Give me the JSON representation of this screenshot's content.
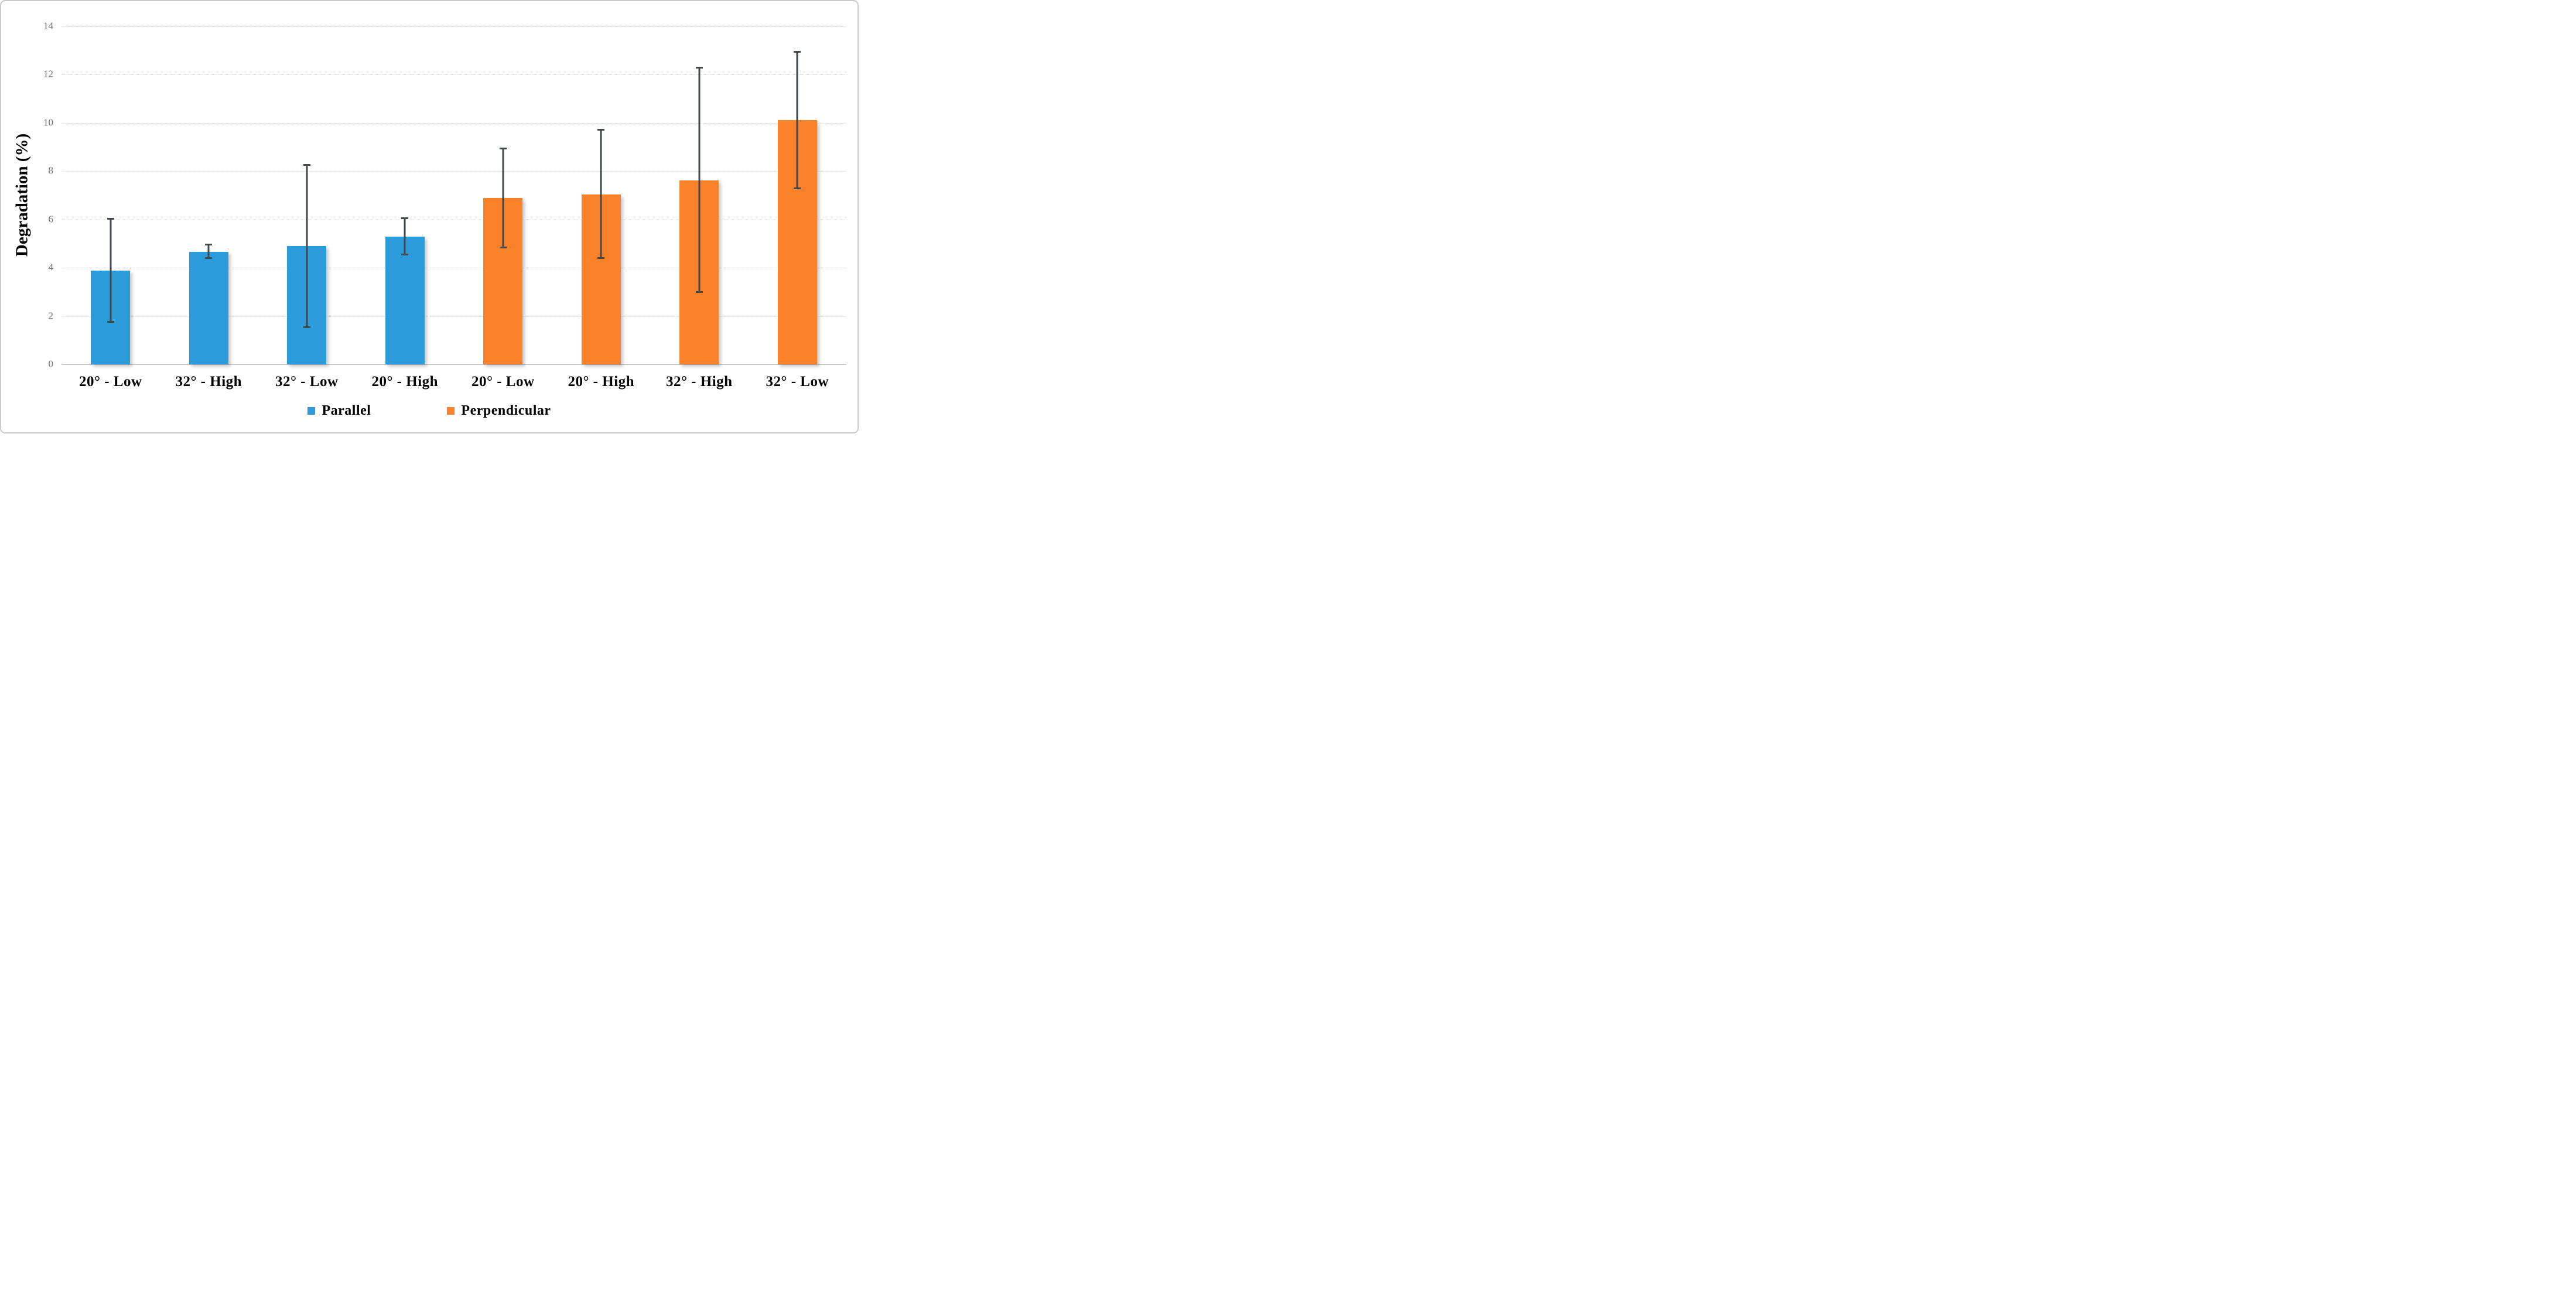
{
  "figure": {
    "background_color": "#ffffff",
    "border_color": "#c9c9c9"
  },
  "chart_data": {
    "type": "bar",
    "title": "",
    "xlabel": "",
    "ylabel": "Degradation (%)",
    "ylim": [
      0,
      14
    ],
    "ytick_step": 2,
    "grid": true,
    "legend_position": "bottom",
    "categories": [
      "20° - Low",
      "32° - High",
      "32° - Low",
      "20° - High",
      "20° - Low",
      "20° - High",
      "32° - High",
      "32° - Low"
    ],
    "series_membership": [
      "Parallel",
      "Parallel",
      "Parallel",
      "Parallel",
      "Perpendicular",
      "Perpendicular",
      "Perpendicular",
      "Perpendicular"
    ],
    "values": [
      3.88,
      4.67,
      4.91,
      5.3,
      6.89,
      7.04,
      7.63,
      10.11
    ],
    "error_low": [
      1.75,
      4.41,
      1.55,
      4.55,
      4.85,
      4.4,
      3.0,
      7.28
    ],
    "error_high": [
      6.03,
      4.96,
      8.26,
      6.05,
      8.94,
      9.72,
      12.28,
      12.94
    ],
    "legend": [
      {
        "label": "Parallel",
        "color": "#2c9bd9"
      },
      {
        "label": "Perpendicular",
        "color": "#f98129"
      }
    ],
    "colors": {
      "parallel": "#2c9bd9",
      "perpendicular": "#f98129",
      "error_bar": "#43484d",
      "gridline": "#d6d6d6",
      "axis_line": "#b9b9b9",
      "y_tick_text": "#6e6e6e",
      "label_text": "#000000"
    }
  }
}
